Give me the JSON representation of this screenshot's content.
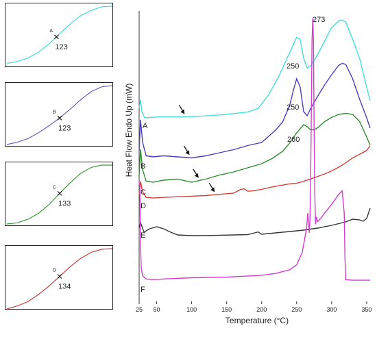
{
  "chart_data": [
    {
      "type": "line",
      "xlabel": "Temperature (°C)",
      "ylabel": "Heat Flow Endo Up (mW)",
      "x_ticks": [
        "25",
        "50",
        "100",
        "150",
        "200",
        "250",
        "300",
        "350"
      ],
      "xlim": [
        25,
        355
      ],
      "series": [
        {
          "name": "A",
          "color": "#40E0D8",
          "x": [
            25,
            27,
            29,
            33,
            45,
            60,
            80,
            100,
            120,
            140,
            160,
            180,
            195,
            210,
            225,
            235,
            245,
            250,
            255,
            260,
            265,
            270,
            280,
            290,
            300,
            310,
            315,
            320,
            330,
            340,
            350,
            355
          ],
          "y": [
            0.5,
            0.95,
            0.3,
            0.0,
            0.03,
            0.05,
            0.05,
            0.06,
            0.1,
            0.15,
            0.22,
            0.3,
            0.5,
            1.2,
            2.2,
            3.0,
            3.8,
            4.2,
            4.1,
            3.1,
            2.6,
            2.7,
            3.3,
            4.0,
            4.7,
            5.05,
            5.1,
            5.0,
            4.1,
            3.1,
            1.6,
            0.9
          ]
        },
        {
          "name": "B",
          "color": "#4B3CC0",
          "x": [
            25,
            27,
            30,
            35,
            45,
            60,
            80,
            100,
            120,
            140,
            160,
            180,
            200,
            210,
            220,
            230,
            240,
            245,
            250,
            255,
            260,
            265,
            270,
            280,
            290,
            300,
            310,
            315,
            320,
            330,
            340,
            350,
            355
          ],
          "y": [
            0.4,
            1.9,
            0.8,
            0.15,
            0.1,
            0.15,
            0.1,
            0.05,
            0.15,
            0.3,
            0.45,
            0.65,
            0.8,
            1.1,
            1.4,
            1.8,
            2.6,
            3.3,
            3.9,
            3.5,
            2.3,
            2.1,
            2.45,
            3.05,
            3.6,
            4.1,
            4.55,
            4.65,
            4.6,
            3.9,
            2.9,
            2.0,
            1.5
          ]
        },
        {
          "name": "C",
          "color": "#2E8B2E",
          "x": [
            25,
            27,
            30,
            35,
            45,
            60,
            80,
            100,
            120,
            140,
            160,
            180,
            200,
            215,
            230,
            240,
            250,
            255,
            260,
            265,
            270,
            275,
            280,
            290,
            300,
            310,
            320,
            330,
            340,
            350,
            355
          ],
          "y": [
            0.5,
            1.8,
            0.8,
            0.25,
            0.2,
            0.3,
            0.35,
            0.2,
            0.35,
            0.55,
            0.7,
            0.9,
            1.1,
            1.35,
            1.7,
            2.1,
            2.6,
            2.8,
            3.0,
            2.9,
            2.75,
            2.75,
            2.85,
            3.15,
            3.35,
            3.5,
            3.55,
            3.5,
            3.15,
            2.4,
            2.0
          ]
        },
        {
          "name": "D",
          "color": "#D0413A",
          "x": [
            25,
            27,
            30,
            35,
            45,
            60,
            80,
            100,
            120,
            140,
            160,
            170,
            175,
            180,
            190,
            200,
            215,
            230,
            240,
            250,
            260,
            270,
            280,
            290,
            300,
            310,
            320,
            330,
            340,
            350,
            355
          ],
          "y": [
            0.3,
            1.4,
            0.55,
            0.1,
            0.05,
            0.1,
            0.15,
            0.2,
            0.25,
            0.35,
            0.45,
            0.75,
            0.8,
            0.6,
            0.65,
            0.75,
            0.95,
            1.1,
            1.2,
            1.25,
            1.4,
            1.6,
            1.8,
            2.0,
            2.25,
            2.55,
            2.9,
            3.3,
            3.6,
            3.9,
            4.3
          ]
        },
        {
          "name": "E",
          "color": "#333333",
          "x": [
            25,
            27,
            32,
            40,
            50,
            60,
            70,
            80,
            100,
            120,
            140,
            160,
            180,
            190,
            195,
            200,
            220,
            240,
            260,
            280,
            300,
            320,
            330,
            340,
            345,
            350,
            355
          ],
          "y": [
            0.6,
            1.0,
            0.3,
            0.55,
            0.7,
            0.55,
            0.3,
            0.1,
            0.05,
            0.05,
            0.08,
            0.1,
            0.12,
            0.25,
            0.32,
            0.15,
            0.25,
            0.35,
            0.45,
            0.6,
            0.8,
            1.05,
            1.25,
            1.2,
            1.1,
            1.3,
            2.05
          ]
        },
        {
          "name": "F",
          "color": "#D63AD0",
          "x": [
            25,
            26,
            27,
            28,
            30,
            35,
            45,
            60,
            100,
            150,
            200,
            220,
            240,
            250,
            258,
            264,
            266,
            268,
            269,
            270,
            271,
            272,
            273,
            274,
            275,
            276,
            277,
            278,
            279,
            280,
            285,
            290,
            300,
            310,
            315,
            318,
            319,
            320,
            330,
            340,
            350,
            355
          ],
          "y": [
            8.0,
            7.6,
            3.0,
            1.0,
            0.4,
            0.15,
            0.1,
            0.15,
            0.25,
            0.3,
            0.45,
            0.6,
            0.9,
            1.3,
            2.3,
            4.2,
            5.5,
            3.9,
            5.0,
            8.5,
            13.5,
            19.5,
            21.3,
            19.5,
            12.0,
            7.0,
            4.6,
            5.2,
            5.0,
            4.8,
            5.1,
            5.5,
            6.2,
            7.0,
            7.3,
            5.5,
            2.0,
            0.1,
            0.05,
            0.05,
            0.05,
            0.05
          ]
        }
      ],
      "series_labels": [
        "A",
        "B",
        "C",
        "D",
        "E",
        "F"
      ],
      "annotations": [
        "250",
        "250",
        "260",
        "273"
      ],
      "arrows": [
        {
          "series": "A",
          "x": 90
        },
        {
          "series": "B",
          "x": 97
        },
        {
          "series": "C",
          "x": 110
        },
        {
          "series": "D",
          "x": 133
        }
      ]
    },
    {
      "type": "line",
      "series": [
        {
          "name": "A",
          "color": "#40E0D8"
        }
      ],
      "x": [
        0,
        0.1,
        0.2,
        0.3,
        0.4,
        0.5,
        0.6,
        0.7,
        0.8,
        0.9,
        1.0
      ],
      "y": [
        0.03,
        0.06,
        0.12,
        0.22,
        0.36,
        0.53,
        0.7,
        0.84,
        0.93,
        0.99,
        1.0
      ],
      "label": "A",
      "midpoint_value": "123",
      "midpoint_x": 0.47
    },
    {
      "type": "line",
      "series": [
        {
          "name": "B",
          "color": "#7060C0"
        }
      ],
      "x": [
        0,
        0.1,
        0.2,
        0.3,
        0.4,
        0.5,
        0.6,
        0.7,
        0.8,
        0.9,
        1.0
      ],
      "y": [
        0.0,
        0.04,
        0.1,
        0.2,
        0.32,
        0.45,
        0.6,
        0.76,
        0.9,
        0.98,
        1.0
      ],
      "label": "B",
      "midpoint_value": "123",
      "midpoint_x": 0.5
    },
    {
      "type": "line",
      "series": [
        {
          "name": "C",
          "color": "#3A9A3A"
        }
      ],
      "x": [
        0,
        0.1,
        0.2,
        0.3,
        0.4,
        0.5,
        0.6,
        0.7,
        0.8,
        0.9,
        1.0
      ],
      "y": [
        0.0,
        0.02,
        0.08,
        0.18,
        0.33,
        0.52,
        0.7,
        0.86,
        0.96,
        1.0,
        1.0
      ],
      "label": "C",
      "midpoint_value": "133",
      "midpoint_x": 0.5
    },
    {
      "type": "line",
      "series": [
        {
          "name": "D",
          "color": "#C84040"
        }
      ],
      "x": [
        0,
        0.1,
        0.2,
        0.3,
        0.4,
        0.5,
        0.6,
        0.7,
        0.8,
        0.9,
        1.0
      ],
      "y": [
        0.0,
        0.05,
        0.12,
        0.24,
        0.38,
        0.54,
        0.7,
        0.84,
        0.94,
        0.99,
        1.0
      ],
      "label": "D",
      "midpoint_value": "134",
      "midpoint_x": 0.5
    }
  ]
}
